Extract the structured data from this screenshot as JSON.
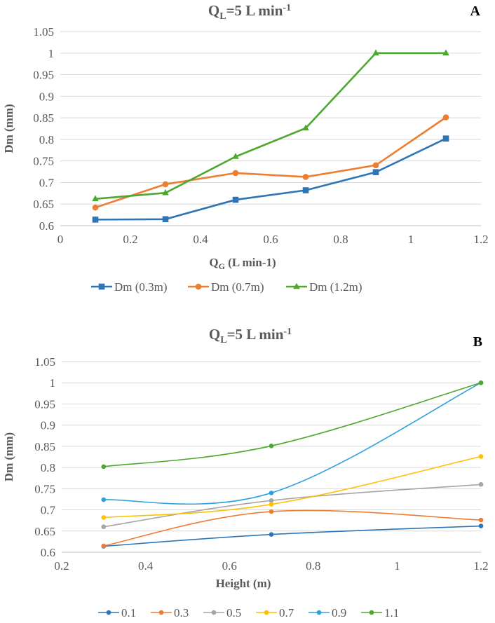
{
  "chart_data": [
    {
      "type": "line",
      "panel_label": "A",
      "title": {
        "main": "Q",
        "sub": "L",
        "rest": "=5 L min",
        "sup": "-1"
      },
      "xlabel": {
        "main": "Q",
        "sub": "G",
        "rest": " (L min-1)"
      },
      "ylabel": "Dm (mm)",
      "xlim": [
        0,
        1.2
      ],
      "ylim": [
        0.6,
        1.05
      ],
      "xticks": [
        0,
        0.2,
        0.4,
        0.6,
        0.8,
        1,
        1.2
      ],
      "xtick_labels": [
        "0",
        "0.2",
        "0.4",
        "0.6",
        "0.8",
        "1",
        "1.2"
      ],
      "yticks": [
        0.6,
        0.65,
        0.7,
        0.75,
        0.8,
        0.85,
        0.9,
        0.95,
        1,
        1.05
      ],
      "ytick_labels": [
        "0.6",
        "0.65",
        "0.7",
        "0.75",
        "0.8",
        "0.85",
        "0.9",
        "0.95",
        "1",
        "1.05"
      ],
      "grid": true,
      "legend": "bottom",
      "smooth": false,
      "x": [
        0.1,
        0.3,
        0.5,
        0.7,
        0.9,
        1.1
      ],
      "series": [
        {
          "name": "Dm (0.3m)",
          "color": "#2e75b6",
          "marker": "square",
          "values": [
            0.614,
            0.615,
            0.66,
            0.682,
            0.724,
            0.802
          ]
        },
        {
          "name": "Dm (0.7m)",
          "color": "#ed7d31",
          "marker": "circle",
          "values": [
            0.642,
            0.696,
            0.722,
            0.713,
            0.74,
            0.851
          ]
        },
        {
          "name": "Dm (1.2m)",
          "color": "#4ea72e",
          "marker": "triangle",
          "values": [
            0.662,
            0.676,
            0.76,
            0.826,
            1.0,
            1.0
          ]
        }
      ]
    },
    {
      "type": "line",
      "panel_label": "B",
      "title": {
        "main": "Q",
        "sub": "L",
        "rest": "=5 L min",
        "sup": "-1"
      },
      "xlabel": {
        "main": "Height (m)",
        "sub": "",
        "rest": ""
      },
      "ylabel": "Dm (mm)",
      "xlim": [
        0.2,
        1.2
      ],
      "ylim": [
        0.6,
        1.05
      ],
      "xticks": [
        0.2,
        0.4,
        0.6,
        0.8,
        1,
        1.2
      ],
      "xtick_labels": [
        "0.2",
        "0.4",
        "0.6",
        "0.8",
        "1",
        "1.2"
      ],
      "yticks": [
        0.6,
        0.65,
        0.7,
        0.75,
        0.8,
        0.85,
        0.9,
        0.95,
        1,
        1.05
      ],
      "ytick_labels": [
        "0.6",
        "0.65",
        "0.7",
        "0.75",
        "0.8",
        "0.85",
        "0.9",
        "0.95",
        "1",
        "1.05"
      ],
      "grid": true,
      "legend": "bottom",
      "smooth": true,
      "x": [
        0.3,
        0.7,
        1.2
      ],
      "series": [
        {
          "name": "0.1",
          "color": "#2e75b6",
          "marker": "circle",
          "values": [
            0.614,
            0.642,
            0.662
          ]
        },
        {
          "name": "0.3",
          "color": "#ed7d31",
          "marker": "circle",
          "values": [
            0.615,
            0.696,
            0.676
          ]
        },
        {
          "name": "0.5",
          "color": "#a5a5a5",
          "marker": "circle",
          "values": [
            0.66,
            0.722,
            0.76
          ]
        },
        {
          "name": "0.7",
          "color": "#ffc000",
          "marker": "circle",
          "values": [
            0.682,
            0.713,
            0.826
          ]
        },
        {
          "name": "0.9",
          "color": "#2ea0e0",
          "marker": "circle",
          "values": [
            0.724,
            0.74,
            1.0
          ]
        },
        {
          "name": "1.1",
          "color": "#4ea72e",
          "marker": "circle",
          "values": [
            0.802,
            0.851,
            1.0
          ]
        }
      ]
    }
  ]
}
